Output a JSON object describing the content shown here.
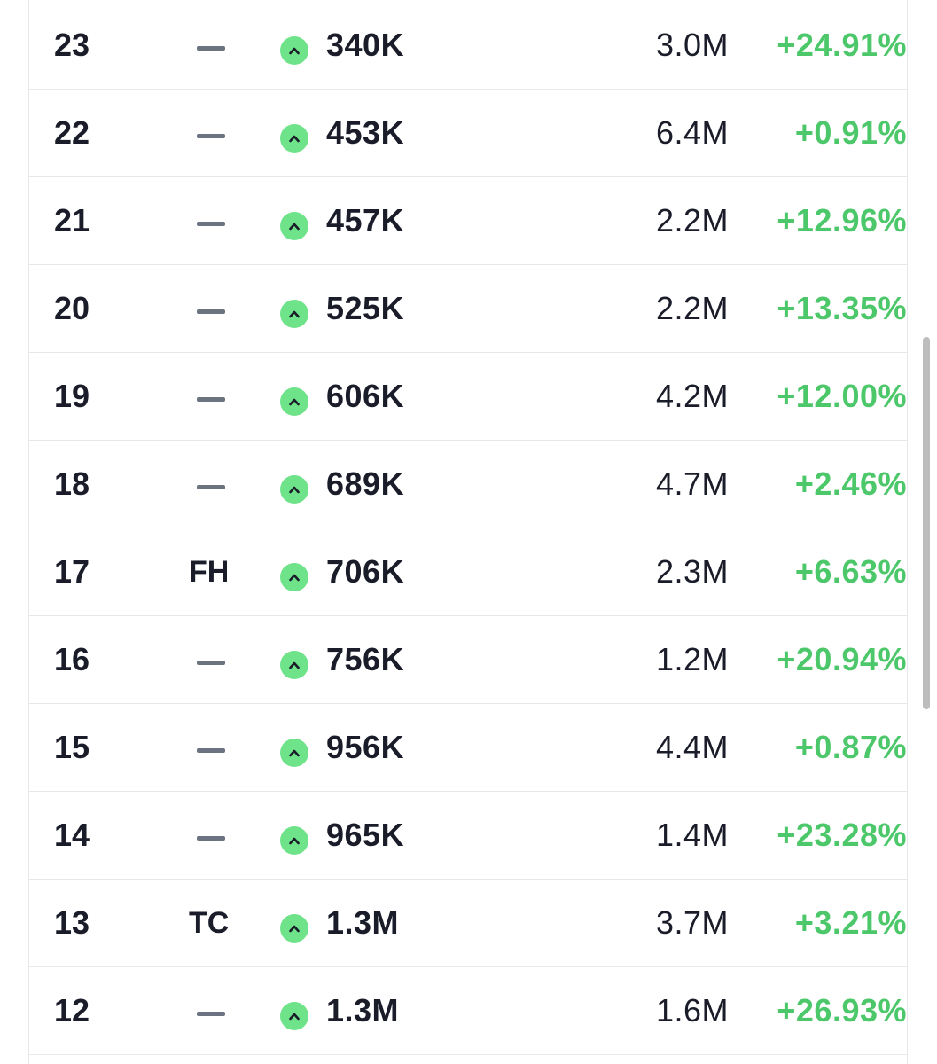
{
  "rows": [
    {
      "rank": "23",
      "tag": "",
      "count": "340K",
      "total": "3.0M",
      "change": "+24.91%"
    },
    {
      "rank": "22",
      "tag": "",
      "count": "453K",
      "total": "6.4M",
      "change": "+0.91%"
    },
    {
      "rank": "21",
      "tag": "",
      "count": "457K",
      "total": "2.2M",
      "change": "+12.96%"
    },
    {
      "rank": "20",
      "tag": "",
      "count": "525K",
      "total": "2.2M",
      "change": "+13.35%"
    },
    {
      "rank": "19",
      "tag": "",
      "count": "606K",
      "total": "4.2M",
      "change": "+12.00%"
    },
    {
      "rank": "18",
      "tag": "",
      "count": "689K",
      "total": "4.7M",
      "change": "+2.46%"
    },
    {
      "rank": "17",
      "tag": "FH",
      "count": "706K",
      "total": "2.3M",
      "change": "+6.63%"
    },
    {
      "rank": "16",
      "tag": "",
      "count": "756K",
      "total": "1.2M",
      "change": "+20.94%"
    },
    {
      "rank": "15",
      "tag": "",
      "count": "956K",
      "total": "4.4M",
      "change": "+0.87%"
    },
    {
      "rank": "14",
      "tag": "",
      "count": "965K",
      "total": "1.4M",
      "change": "+23.28%"
    },
    {
      "rank": "13",
      "tag": "TC",
      "count": "1.3M",
      "total": "3.7M",
      "change": "+3.21%"
    },
    {
      "rank": "12",
      "tag": "",
      "count": "1.3M",
      "total": "1.6M",
      "change": "+26.93%"
    }
  ],
  "icons": {
    "trend": "chevron-up-icon",
    "no_tag": "dash-icon"
  },
  "colors": {
    "positive": "#4cc76a",
    "badge": "#6ee38a",
    "text": "#1a1d29",
    "dash": "#6b7280",
    "divider": "#e6e8ec"
  }
}
